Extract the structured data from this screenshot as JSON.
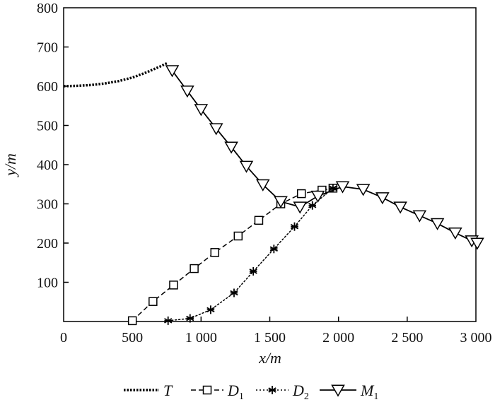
{
  "chart_data": {
    "type": "line",
    "title": "",
    "xlabel": "x/m",
    "ylabel": "y/m",
    "xlim": [
      0,
      3000
    ],
    "ylim": [
      0,
      800
    ],
    "xticks": [
      0,
      500,
      1000,
      1500,
      2000,
      2500,
      3000
    ],
    "xtick_labels": [
      "0",
      "500",
      "1 000",
      "1 500",
      "2 000",
      "2 500",
      "3 000"
    ],
    "yticks": [
      100,
      200,
      300,
      400,
      500,
      600,
      700,
      800
    ],
    "ytick_labels": [
      "100",
      "200",
      "300",
      "400",
      "500",
      "600",
      "700",
      "800"
    ],
    "grid": false,
    "legend_position": "bottom",
    "series": [
      {
        "name": "T",
        "sub": "",
        "style": "dotted-thick",
        "marker": "none",
        "x": [
          0,
          100,
          200,
          300,
          400,
          500,
          600,
          700,
          760
        ],
        "y": [
          600,
          601,
          603,
          607,
          613,
          622,
          635,
          650,
          660
        ]
      },
      {
        "name": "D",
        "sub": "1",
        "style": "dashed",
        "marker": "square",
        "x": [
          500,
          650,
          800,
          950,
          1100,
          1270,
          1420,
          1580,
          1730,
          1880,
          1960
        ],
        "y": [
          2,
          51,
          93,
          135,
          176,
          218,
          258,
          300,
          326,
          335,
          340
        ]
      },
      {
        "name": "D",
        "sub": "2",
        "style": "dotted",
        "marker": "asterisk",
        "x": [
          760,
          920,
          1070,
          1240,
          1380,
          1530,
          1680,
          1810,
          1960
        ],
        "y": [
          2,
          8,
          30,
          73,
          128,
          185,
          242,
          296,
          340
        ]
      },
      {
        "name": "M",
        "sub": "1",
        "style": "solid",
        "marker": "triangle-down",
        "x": [
          790,
          900,
          1000,
          1110,
          1220,
          1330,
          1450,
          1580,
          1720,
          1850,
          2030,
          2180,
          2320,
          2450,
          2590,
          2720,
          2850,
          2970,
          3010
        ],
        "y": [
          640,
          588,
          541,
          492,
          445,
          396,
          349,
          306,
          292,
          320,
          344,
          337,
          316,
          292,
          270,
          250,
          226,
          206,
          200
        ]
      }
    ]
  }
}
